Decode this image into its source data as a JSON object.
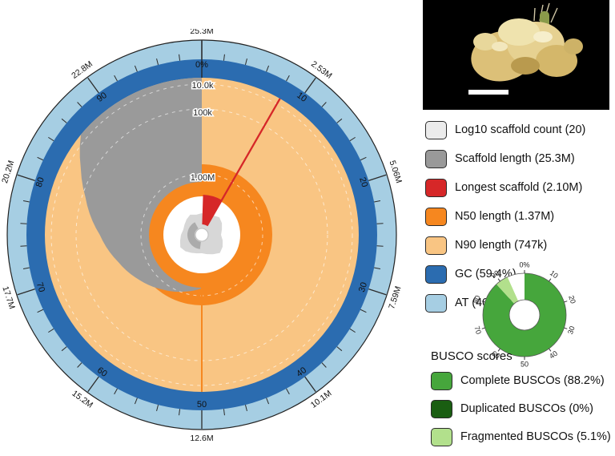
{
  "legend": {
    "items": [
      {
        "id": "scaffold-count",
        "label": "Log10 scaffold count (20)",
        "color": "#ebebeb"
      },
      {
        "id": "scaffold-length",
        "label": "Scaffold length (25.3M)",
        "color": "#999999"
      },
      {
        "id": "longest-scaffold",
        "label": "Longest scaffold (2.10M)",
        "color": "#d62728"
      },
      {
        "id": "n50-length",
        "label": "N50 length (1.37M)",
        "color": "#f6871f"
      },
      {
        "id": "n90-length",
        "label": "N90 length (747k)",
        "color": "#f9c583"
      },
      {
        "id": "gc",
        "label": "GC (59.4%)",
        "color": "#2b6cb0"
      },
      {
        "id": "at",
        "label": "AT (40.6%)",
        "color": "#a6cee3"
      }
    ]
  },
  "busco": {
    "title": "BUSCO scores",
    "items": [
      {
        "id": "complete-buscos",
        "label": "Complete BUSCOs (88.2%)",
        "color": "#46a63c"
      },
      {
        "id": "duplicated-buscos",
        "label": "Duplicated BUSCOs (0%)",
        "color": "#1a5e12"
      },
      {
        "id": "fragmented-buscos",
        "label": "Fragmented BUSCOs (5.1%)",
        "color": "#b2e08c"
      }
    ]
  },
  "chart_data": [
    {
      "type": "snail",
      "total_length": "25.3M",
      "stats": {
        "log10_scaffold_count": 20,
        "scaffold_length": "25.3M",
        "longest_scaffold": "2.10M",
        "longest_scaffold_pct_of_assembly": 8.3,
        "n50_length": "1.37M",
        "n50_pct": 50,
        "n90_length": "747k",
        "n90_pct": 90,
        "gc_pct": 59.4,
        "at_pct": 40.6
      },
      "angular_axis": {
        "unit": "% of assembly",
        "tick_labels": [
          "0%",
          "10",
          "20",
          "30",
          "40",
          "50",
          "60",
          "70",
          "80",
          "90"
        ]
      },
      "outer_scale_labels": [
        "2.53M",
        "5.06M",
        "7.59M",
        "10.1M",
        "12.6M",
        "15.2M",
        "17.7M",
        "20.2M",
        "22.8M",
        "25.3M"
      ],
      "radial_axis": {
        "scale": "log",
        "tick_labels": [
          "10.0k",
          "100k",
          "1.00M"
        ]
      },
      "scaffold_length_profile": [
        [
          50,
          0.34
        ],
        [
          55,
          0.38
        ],
        [
          60,
          0.43
        ],
        [
          65,
          0.49
        ],
        [
          70,
          0.56
        ],
        [
          75,
          0.65
        ],
        [
          80,
          0.78
        ],
        [
          83,
          0.88
        ],
        [
          86,
          1.0
        ],
        [
          100,
          1.0
        ]
      ],
      "colors": {
        "at_ring": "#a6cee3",
        "gc_ring": "#2b6cb0",
        "n90": "#f9c583",
        "n50": "#f6871f",
        "longest": "#d62728",
        "scaffold_gray": "#9a9a9a",
        "count_gray": "#d7d7d7"
      }
    },
    {
      "type": "donut",
      "categories": [
        "Complete BUSCOs",
        "Duplicated BUSCOs",
        "Fragmented BUSCOs"
      ],
      "values": [
        88.2,
        0,
        5.1
      ],
      "colors": [
        "#46a63c",
        "#1a5e12",
        "#b2e08c"
      ],
      "remainder_color": "#ffffff",
      "tick_labels": [
        "0%",
        "10",
        "20",
        "30",
        "40",
        "50",
        "60",
        "70",
        "80",
        "90"
      ]
    }
  ],
  "photo": {
    "description": "rhizome specimen on black background",
    "scale_bar": true
  }
}
